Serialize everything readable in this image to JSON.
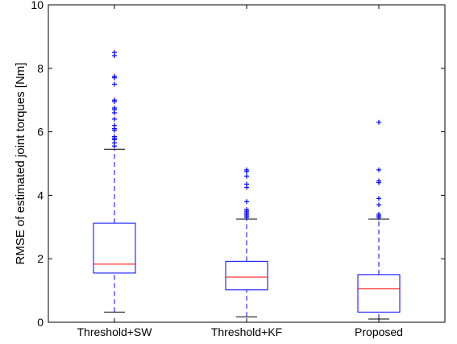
{
  "chart_data": {
    "type": "boxplot",
    "title": "",
    "xlabel": "",
    "ylabel": "RMSE of estimated joint torques [Nm]",
    "ylim": [
      0,
      10
    ],
    "yticks": [
      "0",
      "2",
      "4",
      "6",
      "8",
      "10"
    ],
    "grid": false,
    "categories": [
      "Threshold+SW",
      "Threshold+KF",
      "Proposed"
    ],
    "boxes": [
      {
        "whisker_low": 0.32,
        "q1": 1.55,
        "median": 1.83,
        "q3": 3.12,
        "whisker_high": 5.45,
        "outliers": [
          5.55,
          5.65,
          5.75,
          5.8,
          5.85,
          6.05,
          6.1,
          6.2,
          6.4,
          6.6,
          6.7,
          6.75,
          6.95,
          7.0,
          7.5,
          7.7,
          7.75,
          8.4,
          8.5
        ]
      },
      {
        "whisker_low": 0.17,
        "q1": 1.02,
        "median": 1.42,
        "q3": 1.92,
        "whisker_high": 3.25,
        "outliers": [
          3.3,
          3.35,
          3.4,
          3.45,
          3.5,
          3.55,
          3.8,
          4.25,
          4.35,
          4.6,
          4.75,
          4.8
        ]
      },
      {
        "whisker_low": 0.1,
        "q1": 0.32,
        "median": 1.05,
        "q3": 1.5,
        "whisker_high": 3.25,
        "outliers": [
          3.3,
          3.35,
          3.4,
          3.7,
          3.9,
          4.4,
          4.45,
          4.8,
          6.3
        ]
      }
    ],
    "colors": {
      "box": "#0000ff",
      "median": "#ff0000",
      "whisker_cap": "#000000",
      "outlier": "#0000ff",
      "axis": "#000000"
    }
  }
}
